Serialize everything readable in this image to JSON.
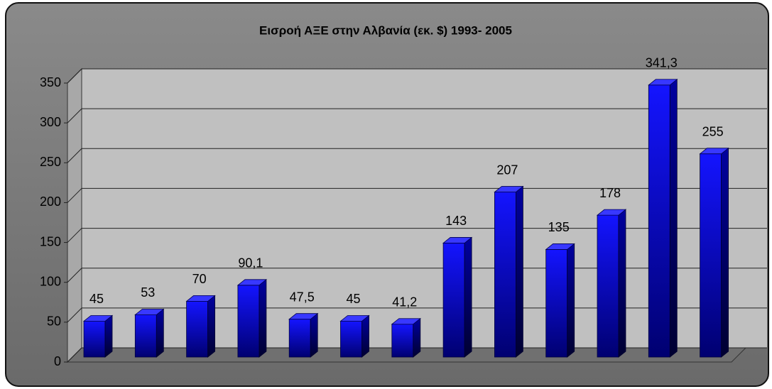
{
  "chart_data": {
    "type": "bar",
    "title": "Εισροή ΑΞΕ στην Αλβανία (εκ. $) 1993- 2005",
    "categories": [
      null,
      null,
      null,
      null,
      null,
      null,
      null,
      null,
      null,
      null,
      null,
      null,
      null
    ],
    "values": [
      45,
      53,
      70,
      90.1,
      47.5,
      45,
      41.2,
      143,
      207,
      135,
      178,
      341.3,
      255
    ],
    "value_labels": [
      "45",
      "53",
      "70",
      "90,1",
      "47,5",
      "45",
      "41,2",
      "143",
      "207",
      "135",
      "178",
      "341,3",
      "255"
    ],
    "color": "#0000ff",
    "ylim": [
      0,
      350
    ],
    "yticks": [
      0,
      50,
      100,
      150,
      200,
      250,
      300,
      350
    ],
    "grid": true
  }
}
